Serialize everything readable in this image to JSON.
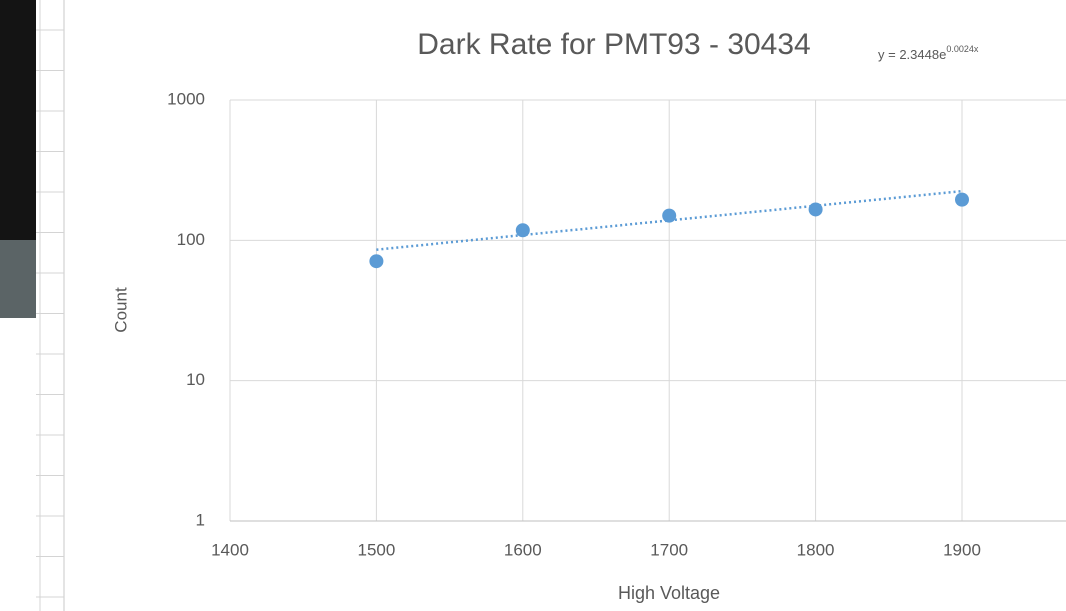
{
  "chart_data": {
    "type": "scatter",
    "title": "Dark Rate for PMT93 - 30434",
    "x_label": "High Voltage",
    "y_label": "Count",
    "x": [
      1500,
      1600,
      1700,
      1800,
      1900
    ],
    "series": [
      {
        "name": "Count",
        "color": "#5b9bd5",
        "values": [
          71,
          118,
          150,
          166,
          195
        ]
      }
    ],
    "trendline": {
      "type": "exponential",
      "label": "y = 2.3448e",
      "exponent_label": "0.0024x",
      "a": 2.3448,
      "b": 0.0024
    },
    "xlim": [
      1400,
      2000
    ],
    "xticks": [
      1400,
      1500,
      1600,
      1700,
      1800,
      1900
    ],
    "ylim": [
      1,
      1000
    ],
    "yticks": [
      1,
      10,
      100,
      1000
    ],
    "log_y": true,
    "grid": true
  }
}
